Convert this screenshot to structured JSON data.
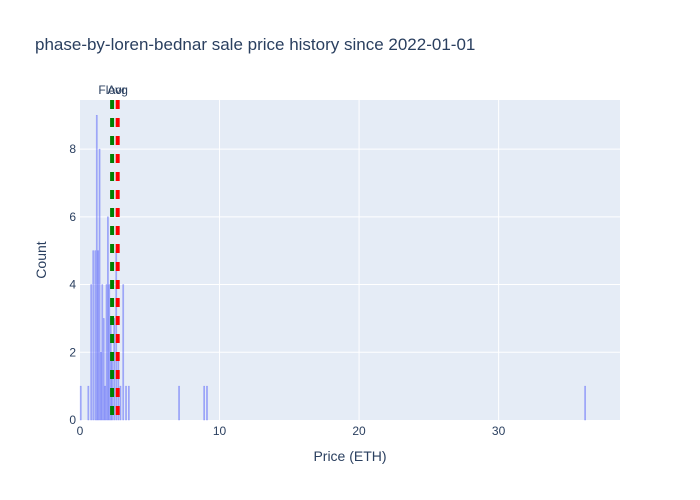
{
  "chart_data": {
    "type": "bar",
    "title": "phase-by-loren-bednar sale price history since 2022-01-01",
    "xlabel": "Price (ETH)",
    "ylabel": "Count",
    "xlim": [
      0,
      38.7
    ],
    "ylim": [
      0,
      9.45
    ],
    "x_ticks": [
      0,
      10,
      20,
      30
    ],
    "y_ticks": [
      0,
      2,
      4,
      6,
      8
    ],
    "grid": true,
    "bar_color": "#636efa",
    "bar_opacity": 0.45,
    "bars": [
      {
        "x": 0.05,
        "count": 1
      },
      {
        "x": 0.6,
        "count": 1
      },
      {
        "x": 0.8,
        "count": 4
      },
      {
        "x": 0.95,
        "count": 5
      },
      {
        "x": 1.1,
        "count": 5
      },
      {
        "x": 1.2,
        "count": 9
      },
      {
        "x": 1.3,
        "count": 5
      },
      {
        "x": 1.4,
        "count": 8
      },
      {
        "x": 1.5,
        "count": 2
      },
      {
        "x": 1.6,
        "count": 4
      },
      {
        "x": 1.7,
        "count": 3
      },
      {
        "x": 1.8,
        "count": 1
      },
      {
        "x": 1.9,
        "count": 4
      },
      {
        "x": 2.0,
        "count": 6
      },
      {
        "x": 2.1,
        "count": 4
      },
      {
        "x": 2.2,
        "count": 3
      },
      {
        "x": 2.3,
        "count": 2
      },
      {
        "x": 2.45,
        "count": 3
      },
      {
        "x": 2.6,
        "count": 5
      },
      {
        "x": 2.75,
        "count": 2
      },
      {
        "x": 2.9,
        "count": 1
      },
      {
        "x": 3.1,
        "count": 4
      },
      {
        "x": 3.3,
        "count": 1
      },
      {
        "x": 3.5,
        "count": 1
      },
      {
        "x": 7.1,
        "count": 1
      },
      {
        "x": 8.9,
        "count": 1
      },
      {
        "x": 9.1,
        "count": 1
      },
      {
        "x": 36.2,
        "count": 1
      }
    ],
    "annotations": [
      {
        "label": "Floor",
        "x": 2.3,
        "color": "#008000",
        "style": "dash"
      },
      {
        "label": "Avg",
        "x": 2.7,
        "color": "#ff0000",
        "style": "dash"
      }
    ]
  }
}
